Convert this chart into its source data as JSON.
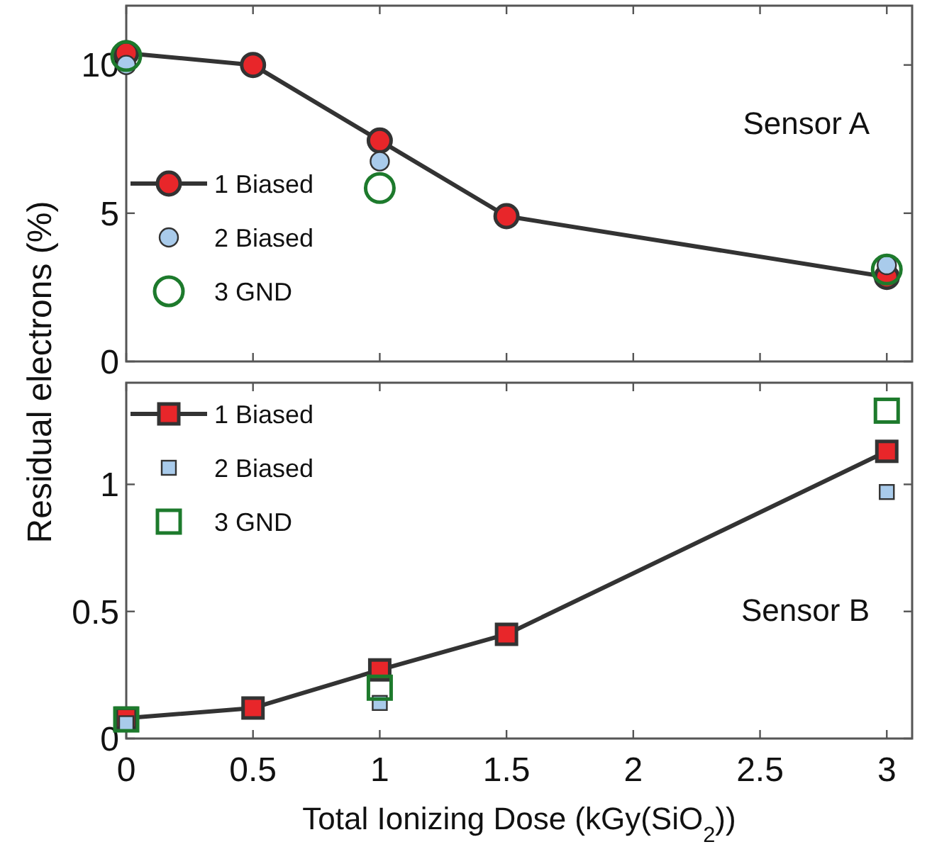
{
  "chart_data": [
    {
      "type": "line",
      "ylabel": "Residual electrons (%)",
      "annotations": [
        "Sensor A"
      ],
      "x": [
        0,
        0.5,
        1,
        1.5,
        3
      ],
      "xlim": [
        0,
        3.1
      ],
      "xticks": [
        0,
        0.5,
        1,
        1.5,
        2,
        2.5,
        3
      ],
      "ylim": [
        0,
        12
      ],
      "yticks": [
        0,
        5,
        10
      ],
      "tick_labels": "y",
      "marker": "circle",
      "legend": "left",
      "grid": false,
      "series": [
        {
          "name": "1 Biased",
          "color": "#e8262a",
          "values": [
            10.4,
            10.0,
            7.45,
            4.9,
            2.85
          ]
        },
        {
          "name": "2 Biased",
          "type": "scatter",
          "color": "#a9cbeb",
          "values": [
            10.0,
            null,
            6.75,
            null,
            3.25
          ]
        },
        {
          "name": "3 GND",
          "type": "scatter",
          "color": "#1d7a2c",
          "values": [
            10.3,
            null,
            5.85,
            null,
            3.1
          ]
        }
      ]
    },
    {
      "type": "line",
      "xlabel": "Total Ionizing Dose (kGy(SiO$_{2}$))",
      "annotations": [
        "Sensor B"
      ],
      "x": [
        0,
        0.5,
        1,
        1.5,
        3
      ],
      "xlim": [
        0,
        3.1
      ],
      "xticks": [
        0,
        0.5,
        1,
        1.5,
        2,
        2.5,
        3
      ],
      "ylim": [
        0,
        1.4
      ],
      "yticks": [
        0,
        0.5,
        1
      ],
      "marker": "square",
      "legend": "top left",
      "grid": false,
      "series": [
        {
          "name": "1 Biased",
          "color": "#e8262a",
          "values": [
            0.08,
            0.12,
            0.27,
            0.41,
            1.13
          ]
        },
        {
          "name": "2 Biased",
          "type": "scatter",
          "color": "#a9cbeb",
          "values": [
            0.06,
            null,
            0.14,
            null,
            0.97
          ]
        },
        {
          "name": "3 GND",
          "type": "scatter",
          "color": "#1d7a2c",
          "values": [
            0.075,
            null,
            0.2,
            null,
            1.29
          ]
        }
      ]
    }
  ]
}
